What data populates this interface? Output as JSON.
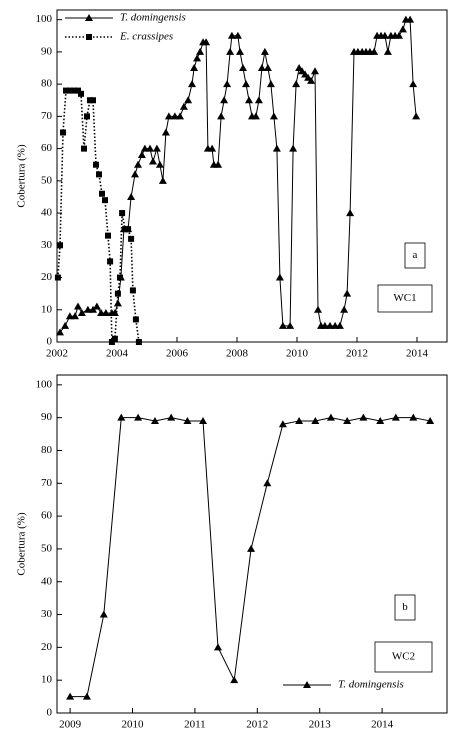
{
  "chart_data": [
    {
      "type": "line",
      "ylabel": "Cobertura (%)",
      "xlim": [
        2002,
        2015
      ],
      "ylim": [
        0,
        103
      ],
      "xticks": [
        2002,
        2004,
        2006,
        2008,
        2010,
        2012,
        2014
      ],
      "yticks": [
        0,
        10,
        20,
        30,
        40,
        50,
        60,
        70,
        80,
        90,
        100
      ],
      "legend": "upper left",
      "annotations": [
        "a",
        "WC1"
      ],
      "series": [
        {
          "name": "T. domingensis",
          "color": "#000000",
          "marker": "triangle",
          "linestyle": "solid",
          "x": [
            2002.1,
            2002.27,
            2002.43,
            2002.6,
            2002.7,
            2002.83,
            2003.03,
            2003.2,
            2003.33,
            2003.47,
            2003.63,
            2003.83,
            2003.93,
            2004.03,
            2004.13,
            2004.23,
            2004.37,
            2004.47,
            2004.6,
            2004.7,
            2004.83,
            2004.93,
            2005.1,
            2005.2,
            2005.33,
            2005.43,
            2005.53,
            2005.63,
            2005.73,
            2005.93,
            2006.1,
            2006.23,
            2006.37,
            2006.5,
            2006.57,
            2006.67,
            2006.77,
            2006.87,
            2006.97,
            2007.03,
            2007.17,
            2007.23,
            2007.37,
            2007.47,
            2007.57,
            2007.67,
            2007.77,
            2007.83,
            2008.03,
            2008.1,
            2008.2,
            2008.3,
            2008.4,
            2008.5,
            2008.63,
            2008.73,
            2008.83,
            2008.93,
            2009.03,
            2009.13,
            2009.23,
            2009.33,
            2009.43,
            2009.53,
            2009.77,
            2009.87,
            2009.97,
            2010.07,
            2010.17,
            2010.27,
            2010.37,
            2010.47,
            2010.6,
            2010.7,
            2010.8,
            2010.93,
            2011.1,
            2011.27,
            2011.43,
            2011.57,
            2011.67,
            2011.77,
            2011.9,
            2012.03,
            2012.17,
            2012.3,
            2012.43,
            2012.57,
            2012.67,
            2012.8,
            2012.93,
            2013.03,
            2013.13,
            2013.27,
            2013.4,
            2013.53,
            2013.63,
            2013.77,
            2013.87,
            2013.97
          ],
          "values": [
            3,
            5,
            8,
            8,
            11,
            9,
            10,
            10,
            11,
            9,
            9,
            9,
            9,
            12,
            20,
            35,
            35,
            45,
            52,
            55,
            58,
            60,
            60,
            56,
            60,
            55,
            50,
            65,
            70,
            70,
            70,
            73,
            75,
            80,
            85,
            88,
            90,
            93,
            93,
            60,
            60,
            55,
            55,
            70,
            75,
            80,
            90,
            95,
            95,
            90,
            85,
            80,
            75,
            70,
            70,
            75,
            85,
            90,
            85,
            80,
            70,
            60,
            20,
            5,
            5,
            60,
            80,
            85,
            84,
            83,
            82,
            81,
            84,
            10,
            5,
            5,
            5,
            5,
            5,
            10,
            15,
            40,
            90,
            90,
            90,
            90,
            90,
            90,
            95,
            95,
            95,
            90,
            95,
            95,
            95,
            97,
            100,
            100,
            80,
            70
          ]
        },
        {
          "name": "E. crassipes",
          "color": "#000000",
          "marker": "square",
          "linestyle": "dotted",
          "x": [
            2002.03,
            2002.1,
            2002.2,
            2002.3,
            2002.43,
            2002.57,
            2002.7,
            2002.8,
            2002.9,
            2003.0,
            2003.1,
            2003.2,
            2003.3,
            2003.4,
            2003.5,
            2003.6,
            2003.7,
            2003.77,
            2003.83,
            2003.93,
            2004.03,
            2004.1,
            2004.17,
            2004.27,
            2004.37,
            2004.47,
            2004.53,
            2004.63,
            2004.73
          ],
          "values": [
            20,
            30,
            65,
            78,
            78,
            78,
            78,
            77,
            60,
            70,
            75,
            75,
            55,
            52,
            46,
            44,
            33,
            25,
            0,
            1,
            15,
            20,
            40,
            35,
            35,
            32,
            16,
            7,
            0
          ]
        }
      ]
    },
    {
      "type": "line",
      "ylabel": "Cobertura (%)",
      "xlim": [
        2008.79,
        2015.04
      ],
      "ylim": [
        0,
        103
      ],
      "xticks": [
        2009,
        2010,
        2011,
        2012,
        2013,
        2014
      ],
      "yticks": [
        0,
        10,
        20,
        30,
        40,
        50,
        60,
        70,
        80,
        90,
        100
      ],
      "legend": "lower right",
      "annotations": [
        "b",
        "WC2"
      ],
      "series": [
        {
          "name": "T. domingensis",
          "color": "#000000",
          "marker": "triangle",
          "linestyle": "solid",
          "x": [
            2009.0,
            2009.27,
            2009.54,
            2009.82,
            2010.09,
            2010.36,
            2010.62,
            2010.88,
            2011.13,
            2011.37,
            2011.63,
            2011.9,
            2012.16,
            2012.41,
            2012.67,
            2012.93,
            2013.18,
            2013.44,
            2013.7,
            2013.97,
            2014.22,
            2014.5,
            2014.77
          ],
          "values": [
            5,
            5,
            30,
            90,
            90,
            89,
            90,
            89,
            89,
            20,
            10,
            50,
            70,
            88,
            89,
            89,
            90,
            89,
            90,
            89,
            90,
            90,
            89
          ]
        }
      ]
    }
  ]
}
